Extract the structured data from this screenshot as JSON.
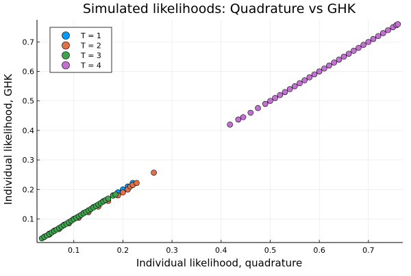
{
  "chart_data": {
    "type": "scatter",
    "title": "Simulated likelihoods: Quadrature vs GHK",
    "xlabel": "Individual likelihood, quadrature",
    "ylabel": "Individual likelihood, GHK",
    "xlim": [
      0.025,
      0.77
    ],
    "ylim": [
      0.02,
      0.775
    ],
    "x_ticks": [
      0.1,
      0.2,
      0.3,
      0.4,
      0.5,
      0.6,
      0.7
    ],
    "x_tick_labels": [
      "0.1",
      "0.2",
      "0.3",
      "0.4",
      "0.5",
      "0.6",
      "0.7"
    ],
    "y_ticks": [
      0.1,
      0.2,
      0.3,
      0.4,
      0.5,
      0.6,
      0.7
    ],
    "y_tick_labels": [
      "0.1",
      "0.2",
      "0.3",
      "0.4",
      "0.5",
      "0.6",
      "0.7"
    ],
    "grid": true,
    "legend_position": "top-left",
    "series": [
      {
        "name": "T = 1",
        "color": "#009AFA",
        "points": [
          [
            0.04,
            0.04
          ],
          [
            0.05,
            0.05
          ],
          [
            0.06,
            0.06
          ],
          [
            0.08,
            0.08
          ],
          [
            0.1,
            0.1
          ],
          [
            0.12,
            0.12
          ],
          [
            0.14,
            0.14
          ],
          [
            0.16,
            0.16
          ],
          [
            0.18,
            0.18
          ],
          [
            0.19,
            0.19
          ],
          [
            0.2,
            0.2
          ],
          [
            0.21,
            0.21
          ],
          [
            0.22,
            0.222
          ]
        ]
      },
      {
        "name": "T = 2",
        "color": "#E36F47",
        "points": [
          [
            0.05,
            0.047
          ],
          [
            0.07,
            0.066
          ],
          [
            0.09,
            0.085
          ],
          [
            0.11,
            0.104
          ],
          [
            0.13,
            0.123
          ],
          [
            0.15,
            0.142
          ],
          [
            0.17,
            0.161
          ],
          [
            0.19,
            0.18
          ],
          [
            0.2,
            0.19
          ],
          [
            0.21,
            0.2
          ],
          [
            0.215,
            0.21
          ],
          [
            0.22,
            0.215
          ],
          [
            0.228,
            0.222
          ],
          [
            0.263,
            0.257
          ]
        ]
      },
      {
        "name": "T = 3",
        "color": "#3EA44E",
        "points": [
          [
            0.035,
            0.034
          ],
          [
            0.04,
            0.039
          ],
          [
            0.045,
            0.044
          ],
          [
            0.05,
            0.049
          ],
          [
            0.055,
            0.054
          ],
          [
            0.06,
            0.059
          ],
          [
            0.065,
            0.064
          ],
          [
            0.07,
            0.069
          ],
          [
            0.075,
            0.074
          ],
          [
            0.08,
            0.079
          ],
          [
            0.085,
            0.084
          ],
          [
            0.09,
            0.089
          ],
          [
            0.095,
            0.094
          ],
          [
            0.1,
            0.099
          ],
          [
            0.105,
            0.104
          ],
          [
            0.11,
            0.109
          ],
          [
            0.115,
            0.114
          ],
          [
            0.12,
            0.119
          ],
          [
            0.125,
            0.124
          ],
          [
            0.13,
            0.129
          ],
          [
            0.135,
            0.134
          ],
          [
            0.14,
            0.139
          ],
          [
            0.145,
            0.144
          ],
          [
            0.15,
            0.149
          ],
          [
            0.155,
            0.154
          ],
          [
            0.16,
            0.159
          ],
          [
            0.165,
            0.164
          ],
          [
            0.17,
            0.169
          ],
          [
            0.18,
            0.179
          ],
          [
            0.185,
            0.183
          ]
        ]
      },
      {
        "name": "T = 4",
        "color": "#C271D2",
        "points": [
          [
            0.418,
            0.42
          ],
          [
            0.435,
            0.437
          ],
          [
            0.445,
            0.445
          ],
          [
            0.46,
            0.46
          ],
          [
            0.475,
            0.476
          ],
          [
            0.49,
            0.49
          ],
          [
            0.5,
            0.5
          ],
          [
            0.51,
            0.51
          ],
          [
            0.52,
            0.52
          ],
          [
            0.53,
            0.53
          ],
          [
            0.54,
            0.54
          ],
          [
            0.55,
            0.55
          ],
          [
            0.56,
            0.56
          ],
          [
            0.57,
            0.57
          ],
          [
            0.58,
            0.58
          ],
          [
            0.59,
            0.59
          ],
          [
            0.6,
            0.6
          ],
          [
            0.61,
            0.61
          ],
          [
            0.62,
            0.62
          ],
          [
            0.63,
            0.63
          ],
          [
            0.64,
            0.64
          ],
          [
            0.65,
            0.65
          ],
          [
            0.66,
            0.66
          ],
          [
            0.67,
            0.67
          ],
          [
            0.68,
            0.68
          ],
          [
            0.69,
            0.69
          ],
          [
            0.7,
            0.7
          ],
          [
            0.71,
            0.71
          ],
          [
            0.72,
            0.72
          ],
          [
            0.73,
            0.73
          ],
          [
            0.74,
            0.74
          ],
          [
            0.75,
            0.75
          ],
          [
            0.757,
            0.757
          ],
          [
            0.76,
            0.76
          ]
        ]
      }
    ]
  }
}
